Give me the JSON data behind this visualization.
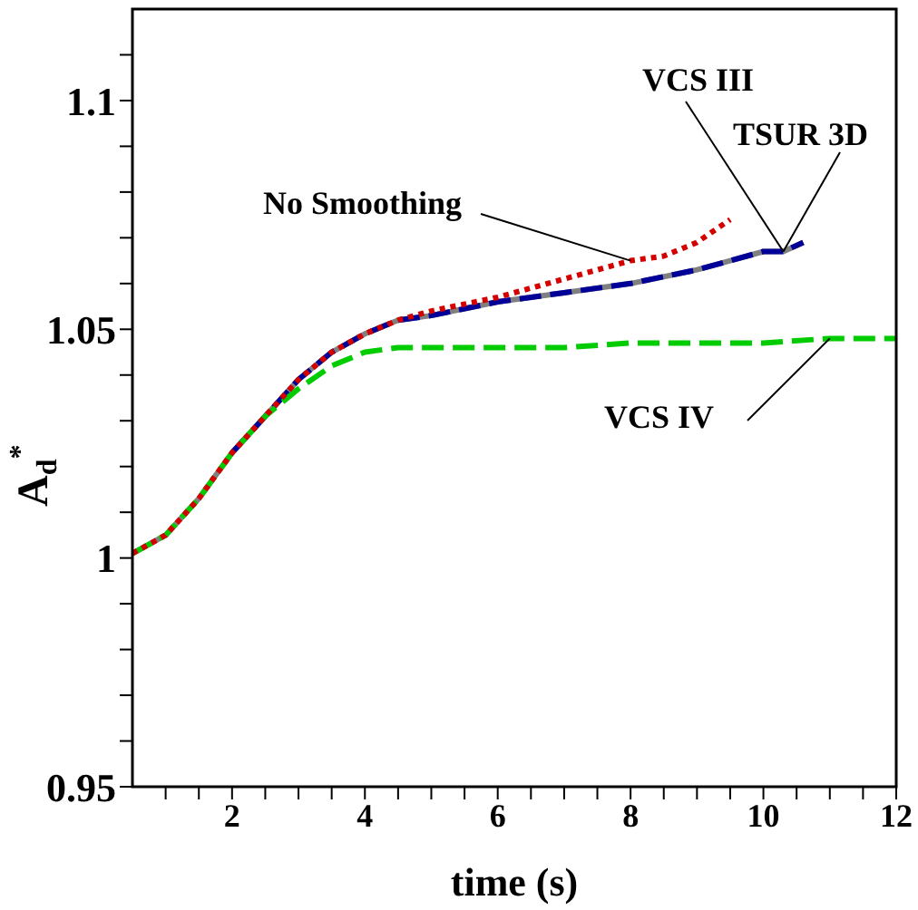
{
  "chart_data": {
    "type": "line",
    "xlabel": "time (s)",
    "ylabel": "A$_{d}$$^{*}$",
    "xlim": [
      0.5,
      12
    ],
    "xticks": [
      {
        "value": 1,
        "label": null
      },
      {
        "value": 1.5,
        "label": null
      },
      2,
      {
        "value": 2.5,
        "label": null
      },
      {
        "value": 3,
        "label": null
      },
      {
        "value": 3.5,
        "label": null
      },
      4,
      {
        "value": 4.5,
        "label": null
      },
      {
        "value": 5,
        "label": null
      },
      {
        "value": 5.5,
        "label": null
      },
      6,
      {
        "value": 6.5,
        "label": null
      },
      {
        "value": 7,
        "label": null
      },
      {
        "value": 7.5,
        "label": null
      },
      8,
      {
        "value": 8.5,
        "label": null
      },
      {
        "value": 9,
        "label": null
      },
      {
        "value": 9.5,
        "label": null
      },
      10,
      {
        "value": 10.5,
        "label": null
      },
      {
        "value": 11,
        "label": null
      },
      {
        "value": 11.5,
        "label": null
      },
      12
    ],
    "ylim": [
      0.95,
      1.12
    ],
    "yticks": [
      0.95,
      {
        "value": 0.96,
        "label": null
      },
      {
        "value": 0.97,
        "label": null
      },
      {
        "value": 0.98,
        "label": null
      },
      {
        "value": 0.99,
        "label": null
      },
      1,
      {
        "value": 1.01,
        "label": null
      },
      {
        "value": 1.02,
        "label": null
      },
      {
        "value": 1.03,
        "label": null
      },
      {
        "value": 1.04,
        "label": null
      },
      1.05,
      {
        "value": 1.06,
        "label": null
      },
      {
        "value": 1.07,
        "label": null
      },
      {
        "value": 1.08,
        "label": null
      },
      {
        "value": 1.09,
        "label": null
      },
      1.1,
      {
        "value": 1.11,
        "label": null
      }
    ],
    "marker": "none",
    "series": [
      {
        "name": "TSUR 3D",
        "color": "#808080",
        "line_style": "solid",
        "x": [
          0.5,
          1,
          1.5,
          2,
          2.5,
          3,
          3.5,
          4,
          4.5,
          5,
          6,
          7,
          8,
          9,
          9.5,
          10,
          10.3,
          10.6
        ],
        "values": [
          1.001,
          1.005,
          1.013,
          1.023,
          1.031,
          1.039,
          1.045,
          1.049,
          1.052,
          1.053,
          1.056,
          1.058,
          1.06,
          1.063,
          1.065,
          1.067,
          1.067,
          1.069
        ]
      },
      {
        "name": "VCS III",
        "color": "#000099",
        "line_style": "dashed",
        "x": [
          2,
          2.5,
          3,
          3.5,
          4,
          4.5,
          5,
          6,
          7,
          8,
          9,
          9.5,
          10,
          10.3,
          10.6
        ],
        "values": [
          1.023,
          1.031,
          1.039,
          1.045,
          1.049,
          1.052,
          1.053,
          1.056,
          1.058,
          1.06,
          1.063,
          1.065,
          1.067,
          1.067,
          1.069
        ]
      },
      {
        "name": "VCS IV",
        "color": "#00cc00",
        "line_style": "dashed",
        "x": [
          0.5,
          1,
          1.5,
          2,
          2.5,
          3,
          3.5,
          4,
          4.5,
          6,
          7,
          8,
          9,
          10,
          11,
          12
        ],
        "values": [
          1.001,
          1.005,
          1.013,
          1.023,
          1.031,
          1.037,
          1.042,
          1.045,
          1.046,
          1.046,
          1.046,
          1.047,
          1.047,
          1.047,
          1.048,
          1.048
        ]
      },
      {
        "name": "No Smoothing",
        "color": "#d40000",
        "line_style": "dotted",
        "x": [
          0.5,
          1,
          1.5,
          2,
          2.5,
          3,
          3.5,
          4,
          4.5,
          5,
          6,
          7,
          8,
          8.5,
          9,
          9.5
        ],
        "values": [
          1.001,
          1.005,
          1.013,
          1.023,
          1.031,
          1.039,
          1.045,
          1.049,
          1.052,
          1.054,
          1.057,
          1.061,
          1.065,
          1.066,
          1.069,
          1.074
        ]
      }
    ]
  }
}
